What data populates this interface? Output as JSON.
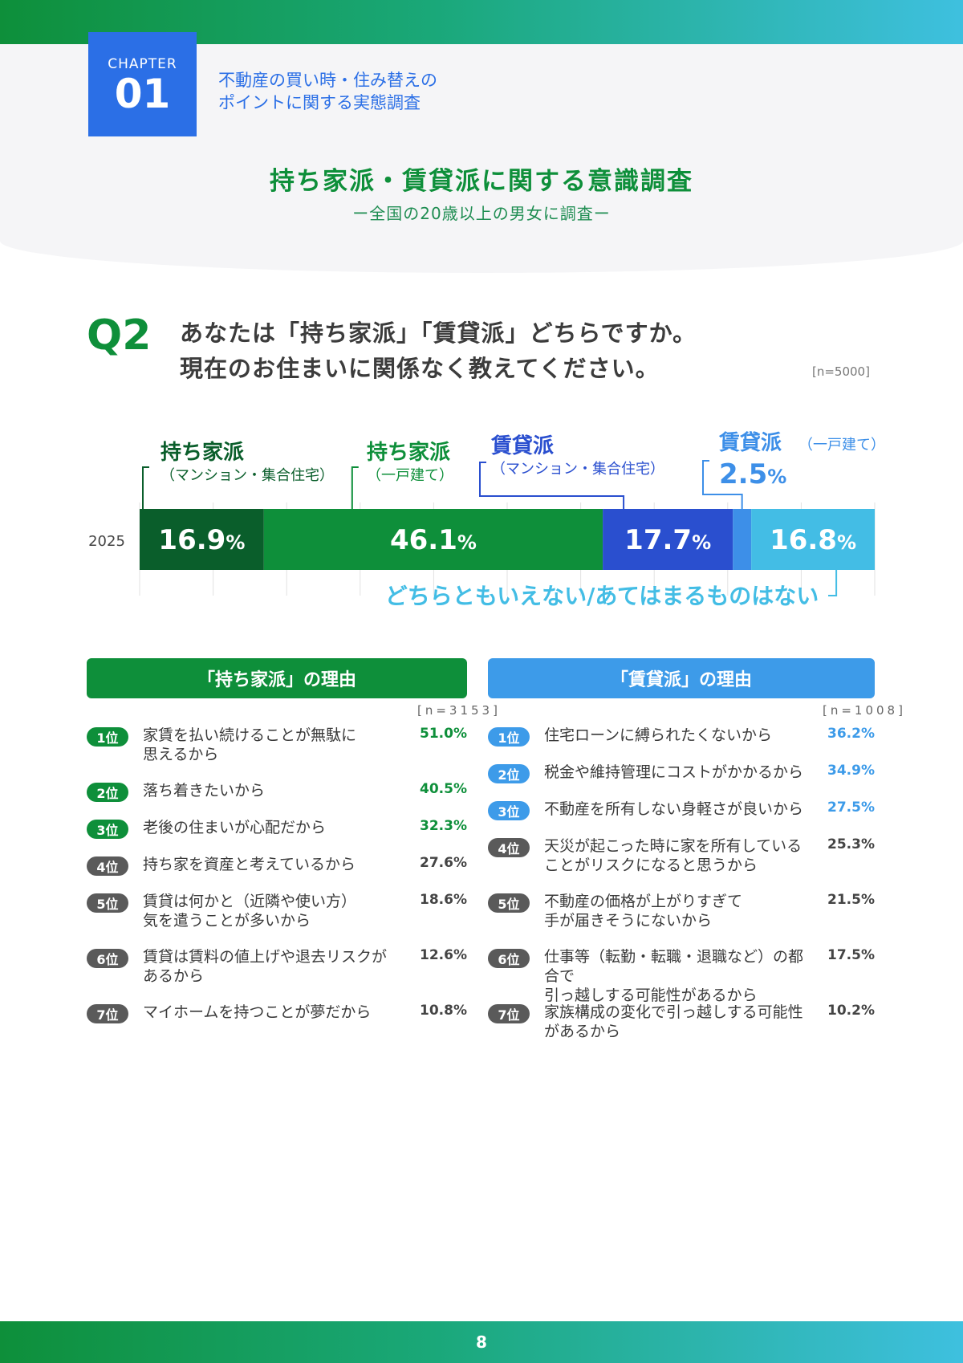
{
  "chapter": {
    "label": "CHAPTER",
    "number": "01",
    "title_line1": "不動産の買い時・住み替えの",
    "title_line2": "ポイントに関する実態調査"
  },
  "survey": {
    "title": "持ち家派・賃貸派に関する意識調査",
    "subtitle": "ー全国の20歳以上の男女に調査ー"
  },
  "question": {
    "label": "Q2",
    "text_line1": "あなたは「持ち家派」「賃貸派」どちらですか。",
    "text_line2": "現在のお住まいに関係なく教えてください。",
    "n": "[n=5000]"
  },
  "chart_data": {
    "type": "bar",
    "orientation": "horizontal-stacked",
    "categories": [
      "2025"
    ],
    "series": [
      {
        "name": "持ち家派（マンション・集合住宅）",
        "values": [
          16.9
        ],
        "color": "#0a5e2b"
      },
      {
        "name": "持ち家派（一戸建て）",
        "values": [
          46.1
        ],
        "color": "#0e8f3a"
      },
      {
        "name": "賃貸派（マンション・集合住宅）",
        "values": [
          17.7
        ],
        "color": "#2a4fcf"
      },
      {
        "name": "賃貸派（一戸建て）",
        "values": [
          2.5
        ],
        "color": "#3d8fe8"
      },
      {
        "name": "どちらともいえない/あてはまるものはない",
        "values": [
          16.8
        ],
        "color": "#43bde5"
      }
    ],
    "labels": {
      "s0_main": "持ち家派",
      "s0_sub": "（マンション・集合住宅）",
      "s1_main": "持ち家派",
      "s1_sub": "（一戸建て）",
      "s2_main": "賃貸派",
      "s2_sub": "（マンション・集合住宅）",
      "s3_main": "賃貸派",
      "s3_sub": "（一戸建て）",
      "s3_value": "2.5",
      "s4_main": "どちらともいえない/あてはまるものはない"
    },
    "value_labels": [
      "16.9",
      "46.1",
      "17.7",
      "",
      "16.8"
    ],
    "unit": "%",
    "xlim": [
      0,
      100
    ]
  },
  "own_reasons": {
    "header": "「持ち家派」の理由",
    "n": "[n=3153]",
    "items": [
      {
        "rank": "1位",
        "text": "家賃を払い続けることが無駄に\n思えるから",
        "pct": "51.0%",
        "color": "#0e8f3a"
      },
      {
        "rank": "2位",
        "text": "落ち着きたいから",
        "pct": "40.5%",
        "color": "#0e8f3a"
      },
      {
        "rank": "3位",
        "text": "老後の住まいが心配だから",
        "pct": "32.3%",
        "color": "#0e8f3a"
      },
      {
        "rank": "4位",
        "text": "持ち家を資産と考えているから",
        "pct": "27.6%",
        "color": "#5a5a5a"
      },
      {
        "rank": "5位",
        "text": "賃貸は何かと（近隣や使い方）\n気を遣うことが多いから",
        "pct": "18.6%",
        "color": "#5a5a5a"
      },
      {
        "rank": "6位",
        "text": "賃貸は賃料の値上げや退去リスクが\nあるから",
        "pct": "12.6%",
        "color": "#5a5a5a"
      },
      {
        "rank": "7位",
        "text": "マイホームを持つことが夢だから",
        "pct": "10.8%",
        "color": "#5a5a5a"
      }
    ]
  },
  "rent_reasons": {
    "header": "「賃貸派」の理由",
    "n": "[n=1008]",
    "items": [
      {
        "rank": "1位",
        "text": "住宅ローンに縛られたくないから",
        "pct": "36.2%",
        "color": "#3d9be9"
      },
      {
        "rank": "2位",
        "text": "税金や維持管理にコストがかかるから",
        "pct": "34.9%",
        "color": "#3d9be9"
      },
      {
        "rank": "3位",
        "text": "不動産を所有しない身軽さが良いから",
        "pct": "27.5%",
        "color": "#3d9be9"
      },
      {
        "rank": "4位",
        "text": "天災が起こった時に家を所有している\nことがリスクになると思うから",
        "pct": "25.3%",
        "color": "#5a5a5a"
      },
      {
        "rank": "5位",
        "text": "不動産の価格が上がりすぎて\n手が届きそうにないから",
        "pct": "21.5%",
        "color": "#5a5a5a"
      },
      {
        "rank": "6位",
        "text": "仕事等（転勤・転職・退職など）の都合で\n引っ越しする可能性があるから",
        "pct": "17.5%",
        "color": "#5a5a5a"
      },
      {
        "rank": "7位",
        "text": "家族構成の変化で引っ越しする可能性\nがあるから",
        "pct": "10.2%",
        "color": "#5a5a5a"
      }
    ]
  },
  "page_number": "8"
}
